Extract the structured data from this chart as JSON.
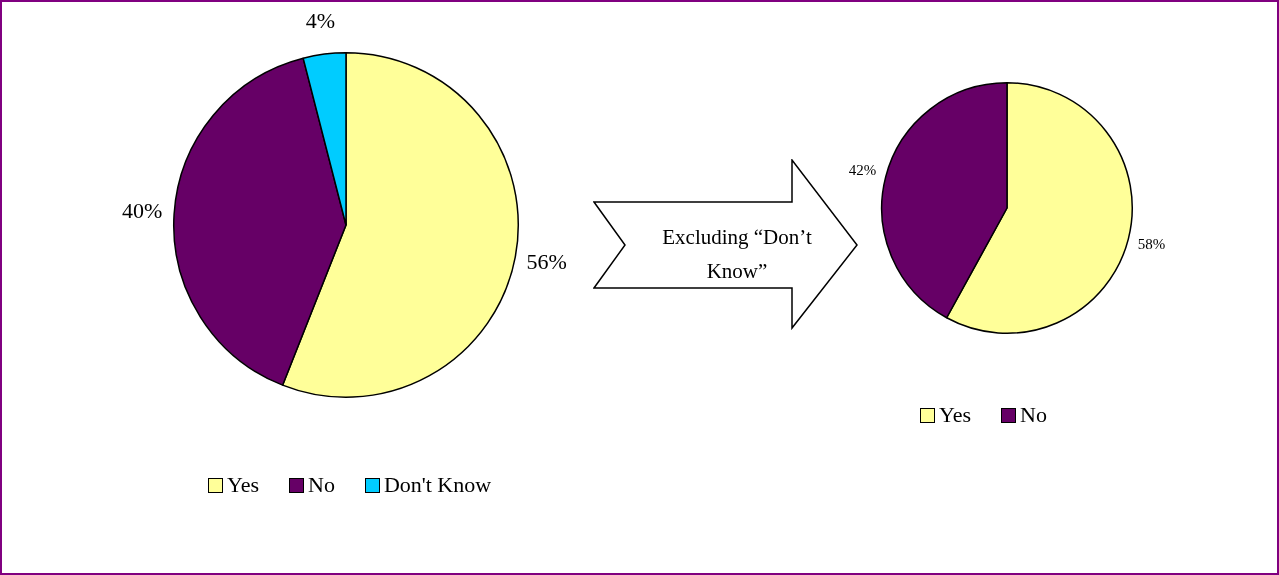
{
  "chart_data": [
    {
      "type": "pie",
      "categories": [
        "Yes",
        "No",
        "Don't Know"
      ],
      "values": [
        56,
        40,
        4
      ],
      "colors": [
        "#ffff99",
        "#660066",
        "#00ccff"
      ],
      "value_labels": [
        "56%",
        "40%",
        "4%"
      ],
      "legend": "bottom"
    },
    {
      "type": "pie",
      "categories": [
        "Yes",
        "No"
      ],
      "values": [
        58,
        42
      ],
      "colors": [
        "#ffff99",
        "#660066"
      ],
      "value_labels": [
        "58%",
        "42%"
      ],
      "legend": "bottom",
      "annotations": [
        "Excluding “Don’t Know”"
      ]
    }
  ]
}
